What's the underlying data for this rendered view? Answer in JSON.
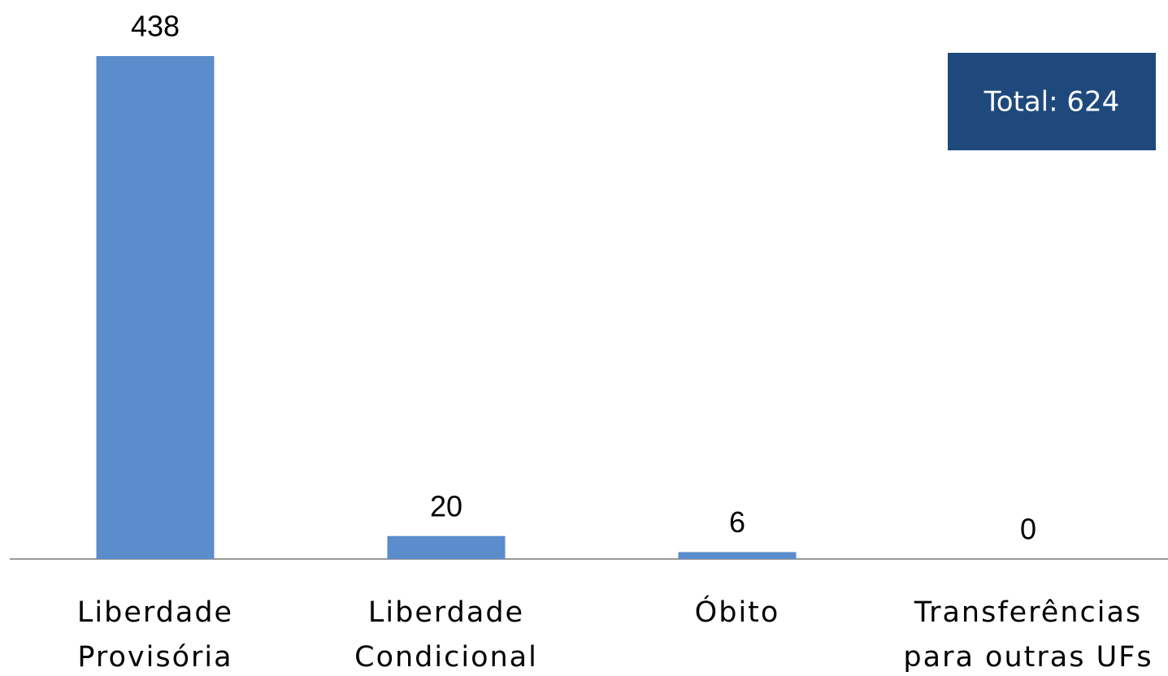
{
  "chart_data": {
    "type": "bar",
    "categories": [
      [
        "Liberdade",
        "Provisória"
      ],
      [
        "Liberdade",
        "Condicional"
      ],
      [
        "Óbito"
      ],
      [
        "Transferências",
        "para outras UFs"
      ]
    ],
    "values": [
      438,
      20,
      6,
      0
    ],
    "color": "#5b8ccb",
    "annotation": "Total: 624"
  }
}
